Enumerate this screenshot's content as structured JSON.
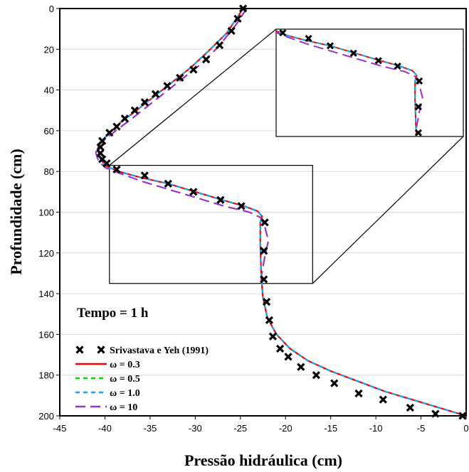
{
  "chart_data": {
    "type": "scatter",
    "xlabel": "Pressão hidráulica (cm)",
    "ylabel": "Profundidade (cm)",
    "xlim": [
      -45,
      0
    ],
    "ylim": [
      0,
      200
    ],
    "y_inverted": true,
    "x_ticks": [
      -45,
      -40,
      -35,
      -30,
      -25,
      -20,
      -15,
      -10,
      -5,
      0
    ],
    "y_ticks": [
      0,
      20,
      40,
      60,
      80,
      100,
      120,
      140,
      160,
      180,
      200
    ],
    "grid": "horizontal",
    "annotation": "Tempo = 1 h",
    "legend_position": "bottom-left",
    "series": [
      {
        "name": "Srivastava e Yeh (1991)",
        "marker": "x",
        "color": "#000000",
        "x": [
          -24.7,
          -25.3,
          -26.0,
          -27.3,
          -28.8,
          -30.2,
          -31.7,
          -33.1,
          -34.4,
          -35.6,
          -36.7,
          -37.8,
          -38.7,
          -39.5,
          -40.3,
          -40.5,
          -40.5,
          -40.3,
          -39.8,
          -38.7,
          -35.6,
          -33.0,
          -30.2,
          -27.2,
          -24.9,
          -22.3,
          -22.4,
          -22.4,
          -22.1,
          -21.8,
          -21.4,
          -20.6,
          -19.7,
          -18.3,
          -16.6,
          -14.6,
          -11.9,
          -9.2,
          -6.2,
          -3.4,
          -0.4
        ],
        "y": [
          0,
          5,
          11,
          18,
          25,
          30,
          34,
          38,
          42,
          46,
          50,
          54,
          58,
          61,
          65,
          68,
          71,
          74,
          76,
          79,
          82,
          86,
          90,
          94,
          97,
          105,
          119,
          133,
          144,
          153,
          161,
          167,
          171,
          176,
          180,
          184,
          189,
          192,
          196,
          199,
          200
        ]
      },
      {
        "name": "ω = 0.3",
        "style": "solid",
        "color": "#ff0000",
        "x": [
          -24.7,
          -26.5,
          -28.8,
          -30.5,
          -32.5,
          -34.5,
          -36.5,
          -38.3,
          -39.7,
          -40.6,
          -40.8,
          -40.6,
          -40.0,
          -38.5,
          -36.0,
          -33.0,
          -30.0,
          -27.0,
          -24.6,
          -23.1,
          -22.6,
          -22.8,
          -22.8,
          -22.7,
          -22.5,
          -22.0,
          -21.0,
          -19.5,
          -17.5,
          -15.0,
          -12.0,
          -9.0,
          -6.0,
          -3.0,
          0
        ],
        "y": [
          0,
          12,
          22,
          29,
          36,
          43,
          50,
          56,
          62,
          66,
          69,
          73,
          77,
          80,
          83,
          86,
          90,
          94,
          97,
          99.5,
          102,
          105,
          115,
          130,
          142,
          152,
          160,
          167,
          173,
          178,
          183,
          188,
          192,
          196,
          200
        ]
      },
      {
        "name": "ω = 0.5",
        "style": "dashed",
        "color": "#00dd00",
        "x": [
          -24.7,
          -26.5,
          -28.8,
          -30.5,
          -32.5,
          -34.5,
          -36.5,
          -38.3,
          -39.7,
          -40.6,
          -40.8,
          -40.6,
          -40.0,
          -38.5,
          -36.0,
          -33.0,
          -30.0,
          -27.0,
          -24.6,
          -23.1,
          -22.6,
          -22.8,
          -22.8,
          -22.7,
          -22.5,
          -22.0,
          -21.0,
          -19.5,
          -17.5,
          -15.0,
          -12.0,
          -9.0,
          -6.0,
          -3.0,
          0
        ],
        "y": [
          0,
          12,
          22,
          29,
          36,
          43,
          50,
          56,
          62,
          66,
          69,
          73,
          77,
          80,
          83,
          86,
          90,
          94,
          97,
          99.5,
          102,
          105,
          115,
          130,
          142,
          152,
          160,
          167,
          173,
          178,
          183,
          188,
          192,
          196,
          200
        ]
      },
      {
        "name": "ω = 1.0",
        "style": "dashed",
        "color": "#1ea0ff",
        "x": [
          -24.7,
          -26.5,
          -28.8,
          -30.5,
          -32.5,
          -34.5,
          -36.5,
          -38.3,
          -39.7,
          -40.6,
          -40.8,
          -40.6,
          -40.0,
          -38.5,
          -36.0,
          -33.0,
          -30.0,
          -27.0,
          -24.6,
          -23.1,
          -22.6,
          -22.8,
          -22.8,
          -22.7,
          -22.5,
          -22.0,
          -21.0,
          -19.5,
          -17.5,
          -15.0,
          -12.0,
          -9.0,
          -6.0,
          -3.0,
          0
        ],
        "y": [
          0,
          12,
          22,
          29,
          36,
          43,
          50,
          56,
          62,
          66,
          69,
          73,
          77,
          80,
          83,
          86,
          90,
          94,
          97,
          99.5,
          102,
          105,
          115,
          130,
          142,
          152,
          160,
          167,
          173,
          178,
          183,
          188,
          192,
          196,
          200
        ]
      },
      {
        "name": "ω = 10",
        "style": "longdash",
        "color": "#9933cc",
        "x": [
          -24.3,
          -25.5,
          -27.3,
          -29.0,
          -31.0,
          -33.0,
          -35.0,
          -37.0,
          -38.8,
          -40.2,
          -40.9,
          -41.0,
          -40.7,
          -40.0,
          -38.3,
          -35.8,
          -32.8,
          -29.8,
          -26.8,
          -24.0,
          -22.8,
          -22.3,
          -21.9,
          -22.3,
          -22.7,
          -22.5,
          -22.0,
          -21.0,
          -19.5,
          -17.5,
          -15.0,
          -12.0,
          -9.0,
          -6.0,
          -3.0,
          0
        ],
        "y": [
          0,
          8,
          18,
          26,
          33,
          40,
          47,
          54,
          60,
          65,
          68,
          71,
          75,
          78,
          81,
          85,
          89,
          93,
          97,
          100,
          102.5,
          107,
          114,
          122,
          132,
          142,
          152,
          160,
          167,
          173,
          178,
          183,
          188,
          192,
          196,
          200
        ]
      }
    ],
    "inset": {
      "description": "zoom",
      "source_region": {
        "xlim": [
          -39.5,
          -17
        ],
        "ylim": [
          77,
          135
        ]
      }
    }
  }
}
